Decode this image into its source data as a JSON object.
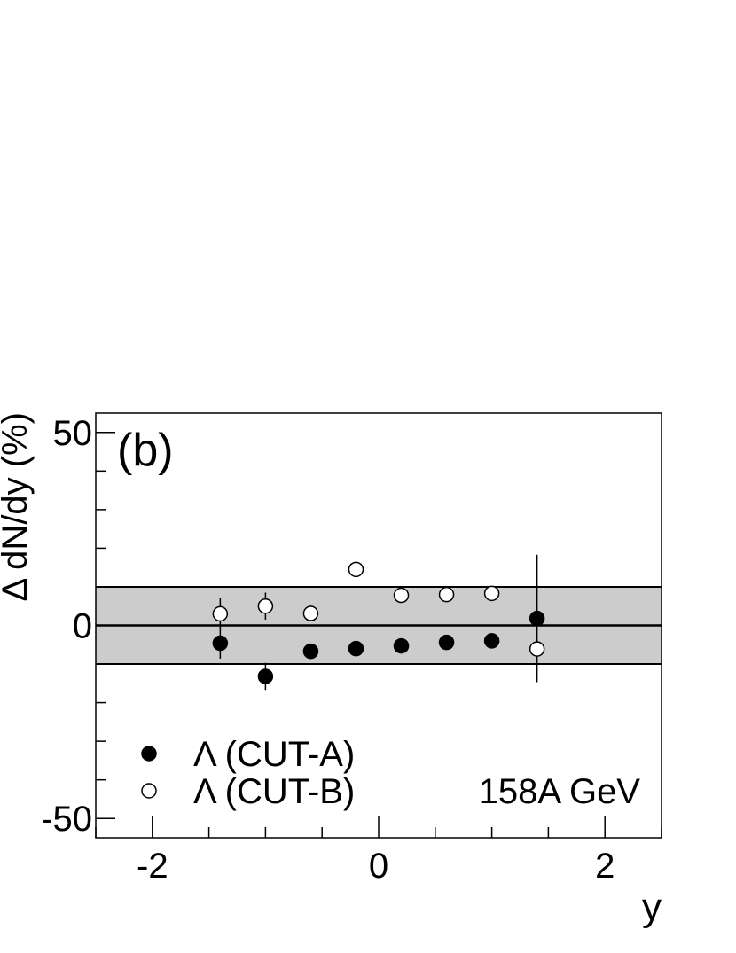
{
  "chart_data": {
    "type": "scatter",
    "panel_label": "(b)",
    "annotation": "158A GeV",
    "xlabel": "y",
    "ylabel": "Δ dN/dy (%)",
    "xlim": [
      -2.5,
      2.5
    ],
    "ylim": [
      -55,
      55
    ],
    "x_ticks": [
      -2,
      0,
      2
    ],
    "x_tick_labels": [
      "-2",
      "0",
      "2"
    ],
    "y_ticks": [
      -50,
      0,
      50
    ],
    "y_tick_labels": [
      "-50",
      "0",
      "50"
    ],
    "band": {
      "lower": -10,
      "upper": 10,
      "color": "#cccccc"
    },
    "series": [
      {
        "name": "Λ (CUT-A)",
        "marker": "filled",
        "x": [
          -1.4,
          -1.0,
          -0.6,
          -0.2,
          0.2,
          0.6,
          1.0,
          1.4
        ],
        "y": [
          -4.6,
          -13.2,
          -6.7,
          -6.0,
          -5.3,
          -4.4,
          -4.0,
          1.8
        ],
        "err": [
          4.0,
          3.5,
          2.0,
          2.0,
          1.5,
          1.5,
          1.5,
          16.5
        ]
      },
      {
        "name": "Λ (CUT-B)",
        "marker": "open",
        "x": [
          -1.4,
          -1.0,
          -0.6,
          -0.2,
          0.2,
          0.6,
          1.0,
          1.4
        ],
        "y": [
          3.0,
          5.0,
          3.1,
          14.5,
          7.8,
          8.0,
          8.3,
          -6.1
        ],
        "err": [
          4.0,
          3.5,
          2.0,
          1.0,
          1.0,
          1.0,
          1.0,
          2.0
        ]
      }
    ]
  }
}
